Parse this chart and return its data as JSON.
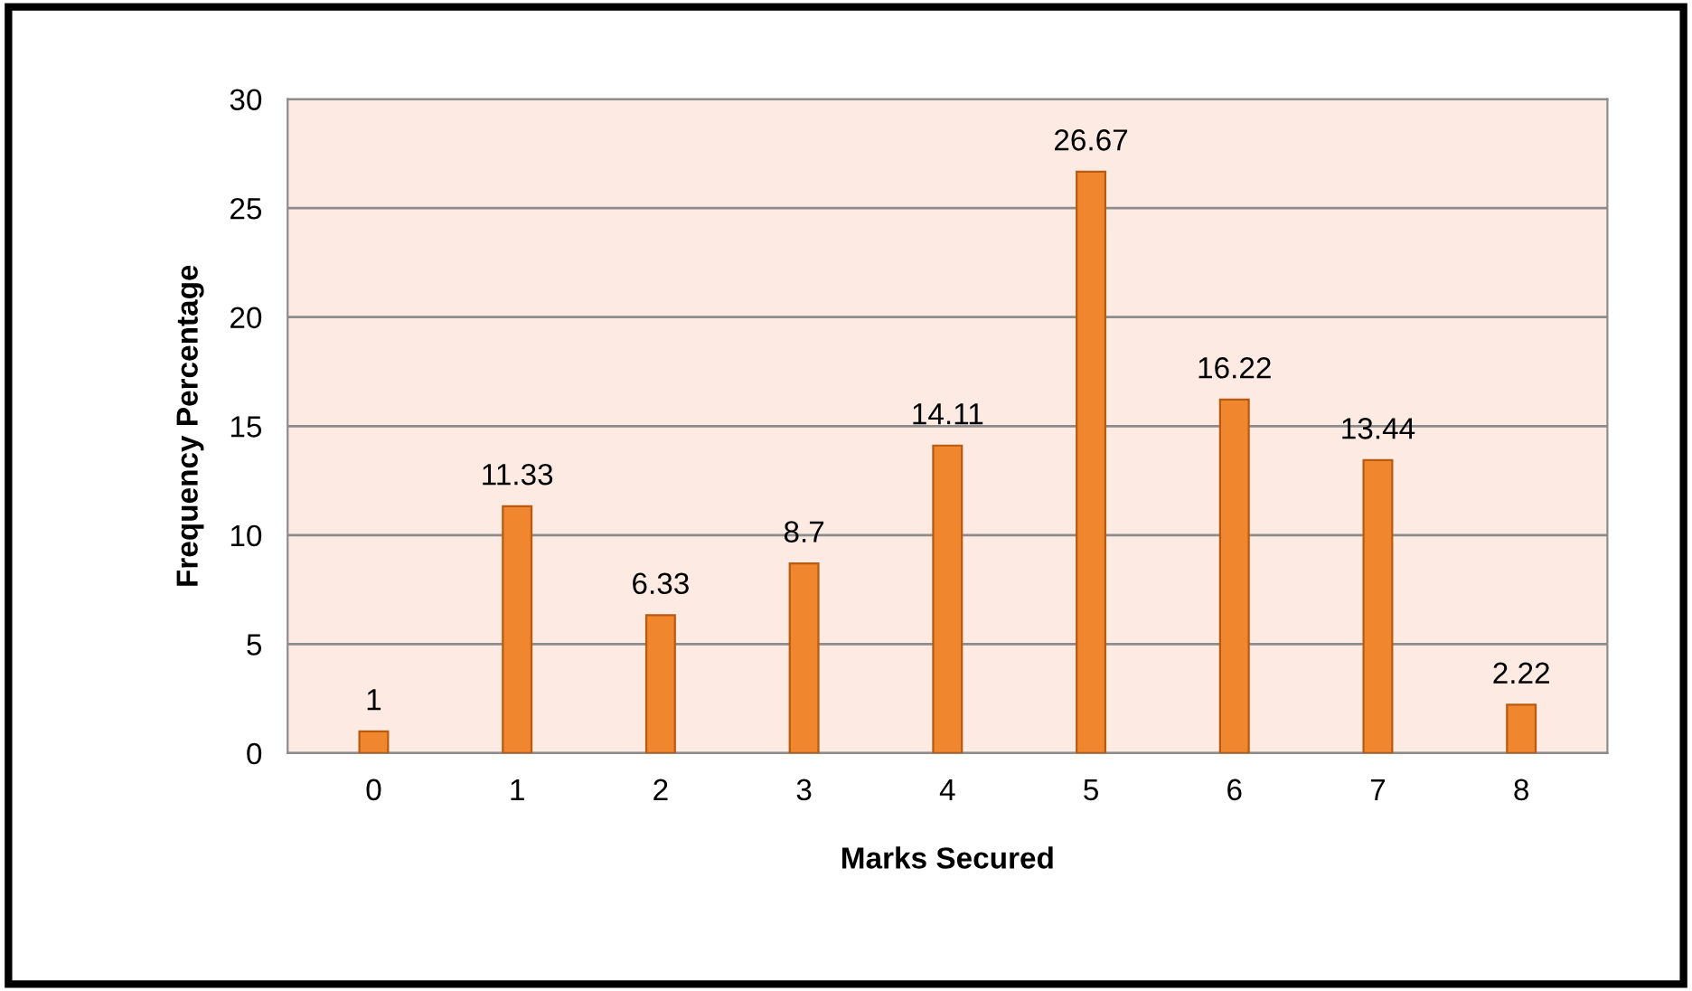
{
  "chart_data": {
    "type": "bar",
    "xlabel": "Marks Secured",
    "ylabel": "Frequency Percentage",
    "categories": [
      "0",
      "1",
      "2",
      "3",
      "4",
      "5",
      "6",
      "7",
      "8"
    ],
    "values": [
      1,
      11.33,
      6.33,
      8.7,
      14.11,
      26.67,
      16.22,
      13.44,
      2.22
    ],
    "color": "#f0862e",
    "ylim": [
      0,
      30
    ],
    "yticks": [
      0,
      5,
      10,
      15,
      20,
      25,
      30
    ],
    "grid": "y",
    "data_labels": true
  }
}
